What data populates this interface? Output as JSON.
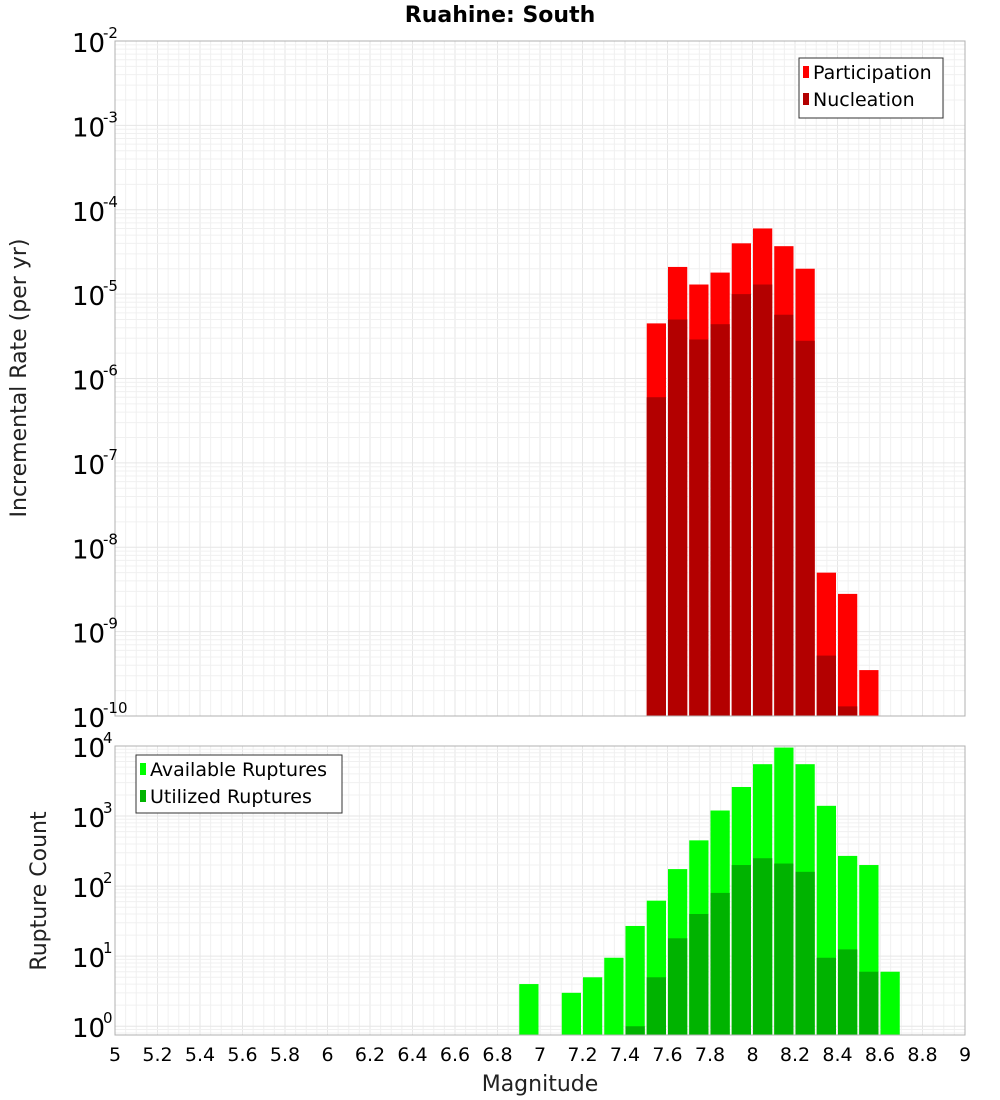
{
  "chart_data": [
    {
      "type": "bar",
      "title": "Ruahine: South",
      "xlabel": "",
      "ylabel": "Incremental Rate (per yr)",
      "yscale": "log",
      "xlim": [
        5,
        9
      ],
      "ylim": [
        1e-10,
        0.01
      ],
      "yticks": [
        {
          "base": "10",
          "exp": "-10"
        },
        {
          "base": "10",
          "exp": "-9"
        },
        {
          "base": "10",
          "exp": "-8"
        },
        {
          "base": "10",
          "exp": "-7"
        },
        {
          "base": "10",
          "exp": "-6"
        },
        {
          "base": "10",
          "exp": "-5"
        },
        {
          "base": "10",
          "exp": "-4"
        },
        {
          "base": "10",
          "exp": "-3"
        },
        {
          "base": "10",
          "exp": "-2"
        }
      ],
      "legend_position": "top-right",
      "bin_width": 0.1,
      "series": [
        {
          "name": "Participation",
          "color": "#ff0000",
          "x": [
            7.55,
            7.65,
            7.75,
            7.85,
            7.95,
            8.05,
            8.15,
            8.25,
            8.35,
            8.45,
            8.55
          ],
          "values": [
            4.5e-06,
            2.1e-05,
            1.3e-05,
            1.8e-05,
            4e-05,
            6e-05,
            3.7e-05,
            2e-05,
            5e-09,
            2.8e-09,
            3.5e-10
          ]
        },
        {
          "name": "Nucleation",
          "color": "#b30000",
          "x": [
            7.55,
            7.65,
            7.75,
            7.85,
            7.95,
            8.05,
            8.15,
            8.25,
            8.35,
            8.45
          ],
          "values": [
            6e-07,
            5e-06,
            2.9e-06,
            4.4e-06,
            1e-05,
            1.3e-05,
            5.7e-06,
            2.8e-06,
            5.2e-10,
            1.3e-10
          ]
        }
      ]
    },
    {
      "type": "bar",
      "xlabel": "Magnitude",
      "ylabel": "Rupture Count",
      "yscale": "log",
      "xlim": [
        5,
        9
      ],
      "ylim": [
        0.75,
        10000
      ],
      "yticks": [
        {
          "base": "10",
          "exp": "0"
        },
        {
          "base": "10",
          "exp": "1"
        },
        {
          "base": "10",
          "exp": "2"
        },
        {
          "base": "10",
          "exp": "3"
        },
        {
          "base": "10",
          "exp": "4"
        }
      ],
      "xticks": [
        "5",
        "5.2",
        "5.4",
        "5.6",
        "5.8",
        "6",
        "6.2",
        "6.4",
        "6.6",
        "6.8",
        "7",
        "7.2",
        "7.4",
        "7.6",
        "7.8",
        "8",
        "8.2",
        "8.4",
        "8.6",
        "8.8",
        "9"
      ],
      "legend_position": "top-left",
      "bin_width": 0.1,
      "series": [
        {
          "name": "Available Ruptures",
          "color": "#00ff00",
          "x": [
            6.95,
            7.15,
            7.25,
            7.35,
            7.45,
            7.55,
            7.65,
            7.75,
            7.85,
            7.95,
            8.05,
            8.15,
            8.25,
            8.35,
            8.45,
            8.55,
            8.65
          ],
          "values": [
            4,
            3,
            5,
            9.5,
            27,
            62,
            175,
            450,
            1200,
            2600,
            5500,
            9500,
            5500,
            1400,
            270,
            200,
            6
          ]
        },
        {
          "name": "Utilized Ruptures",
          "color": "#00b300",
          "x": [
            7.45,
            7.55,
            7.65,
            7.75,
            7.85,
            7.95,
            8.05,
            8.15,
            8.25,
            8.35,
            8.45,
            8.55
          ],
          "values": [
            1,
            5,
            18,
            40,
            80,
            200,
            250,
            210,
            160,
            9.5,
            12.5,
            6
          ]
        }
      ]
    }
  ]
}
